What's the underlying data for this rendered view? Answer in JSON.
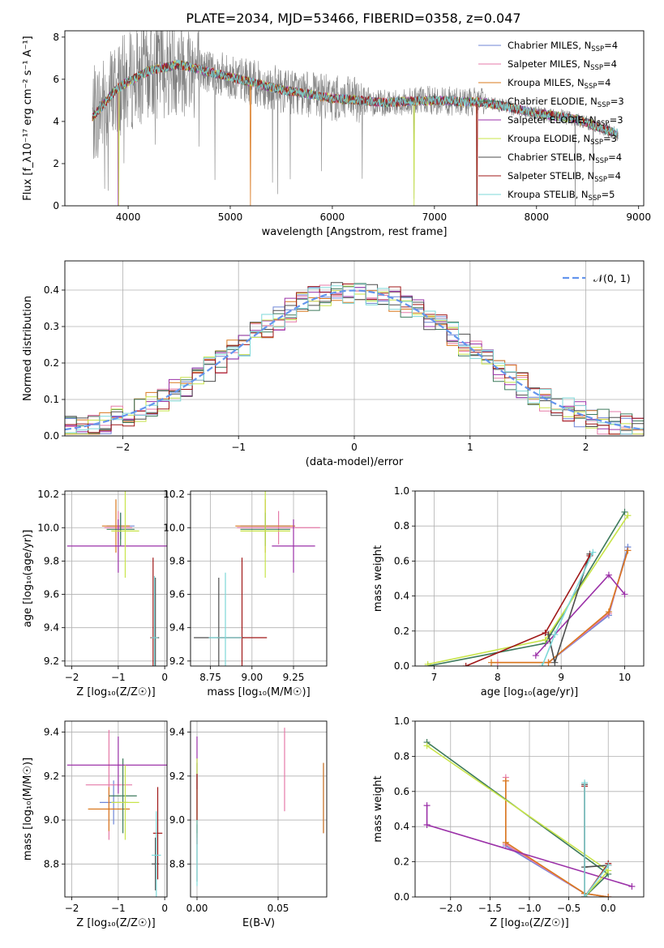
{
  "title": "PLATE=2034, MJD=53466, FIBERID=0358, z=0.047",
  "colors": {
    "chabrier_miles": "#6f86d6",
    "salpeter_miles": "#e57aa8",
    "kroupa_miles": "#d9781e",
    "chabrier_elodie": "#3d7a5c",
    "salpeter_elodie": "#9b31a8",
    "kroupa_elodie": "#c8e44a",
    "chabrier_stelib": "#4d4d4d",
    "salpeter_stelib": "#a01818",
    "kroupa_stelib": "#7dd8d8",
    "data": "#808080",
    "gauss": "#6495ed",
    "grid": "#b0b0b0"
  },
  "chart_data": [
    {
      "id": "spectrum",
      "type": "line",
      "title": "PLATE=2034, MJD=53466, FIBERID=0358, z=0.047",
      "xlabel": "wavelength [Angstrom, rest frame]",
      "ylabel": "Flux [f_λ10⁻¹⁷ erg cm⁻² s⁻¹ A⁻¹]",
      "xlim": [
        3380,
        9050
      ],
      "ylim": [
        0,
        8.3
      ],
      "xticks": [
        4000,
        5000,
        6000,
        7000,
        8000,
        9000
      ],
      "yticks": [
        0,
        2,
        4,
        6,
        8
      ],
      "grid": false,
      "legend": "top-right",
      "continuum": {
        "x": [
          3650,
          3900,
          4200,
          4500,
          5000,
          5500,
          6000,
          6500,
          7000,
          7500,
          8000,
          8400,
          8800
        ],
        "y": [
          4.2,
          5.6,
          6.4,
          6.7,
          6.1,
          5.5,
          5.1,
          4.9,
          5.0,
          4.9,
          4.4,
          4.1,
          3.4
        ]
      },
      "series": [
        {
          "name": "Chabrier MILES, N_SSP=4",
          "label_main": "Chabrier MILES, N",
          "label_sub": "SSP",
          "label_tail": "=4",
          "color_key": "chabrier_miles"
        },
        {
          "name": "Salpeter MILES, N_SSP=4",
          "label_main": "Salpeter MILES, N",
          "label_sub": "SSP",
          "label_tail": "=4",
          "color_key": "salpeter_miles"
        },
        {
          "name": "Kroupa MILES, N_SSP=4",
          "label_main": "Kroupa MILES, N",
          "label_sub": "SSP",
          "label_tail": "=4",
          "color_key": "kroupa_miles"
        },
        {
          "name": "Chabrier ELODIE, N_SSP=3",
          "label_main": "Chabrier ELODIE, N",
          "label_sub": "SSP",
          "label_tail": "=3",
          "color_key": "chabrier_elodie"
        },
        {
          "name": "Salpeter ELODIE, N_SSP=3",
          "label_main": "Salpeter ELODIE, N",
          "label_sub": "SSP",
          "label_tail": "=3",
          "color_key": "salpeter_elodie"
        },
        {
          "name": "Kroupa ELODIE, N_SSP=3",
          "label_main": "Kroupa ELODIE, N",
          "label_sub": "SSP",
          "label_tail": "=3",
          "color_key": "kroupa_elodie"
        },
        {
          "name": "Chabrier STELIB, N_SSP=4",
          "label_main": "Chabrier STELIB, N",
          "label_sub": "SSP",
          "label_tail": "=4",
          "color_key": "chabrier_stelib"
        },
        {
          "name": "Salpeter STELIB, N_SSP=4",
          "label_main": "Salpeter STELIB, N",
          "label_sub": "SSP",
          "label_tail": "=4",
          "color_key": "salpeter_stelib"
        },
        {
          "name": "Kroupa STELIB, N_SSP=5",
          "label_main": "Kroupa STELIB, N",
          "label_sub": "SSP",
          "label_tail": "=5",
          "color_key": "kroupa_stelib"
        }
      ]
    },
    {
      "id": "residuals",
      "type": "line",
      "xlabel": "(data-model)/error",
      "ylabel": "Normed distribution",
      "xlim": [
        -2.5,
        2.5
      ],
      "ylim": [
        0,
        0.48
      ],
      "xticks": [
        -2,
        -1,
        0,
        1,
        2
      ],
      "yticks": [
        0.0,
        0.1,
        0.2,
        0.3,
        0.4
      ],
      "grid": true,
      "legend": "top-right",
      "legend_label": "𝒩(0, 1)",
      "bins": {
        "start": -2.5,
        "width": 0.1,
        "count": 50
      }
    },
    {
      "id": "age_vs_Z",
      "type": "scatter",
      "xlabel": "Z [log₁₀(Z/Z☉)]",
      "ylabel": "age  [log₁₀(age/yr)]",
      "xlim": [
        -2.15,
        0.05
      ],
      "ylim": [
        9.17,
        10.22
      ],
      "xticks": [
        -2,
        -1,
        0
      ],
      "yticks": [
        9.2,
        9.4,
        9.6,
        9.8,
        10.0,
        10.2
      ],
      "grid": true,
      "points": [
        {
          "x": -0.95,
          "y": 10.01,
          "xerr": 0.3,
          "yerr": 0.08,
          "color_key": "chabrier_miles"
        },
        {
          "x": -1.0,
          "y": 10.0,
          "xerr": 0.3,
          "yerr": 0.1,
          "color_key": "salpeter_miles"
        },
        {
          "x": -1.05,
          "y": 10.01,
          "xerr": 0.3,
          "yerr": 0.16,
          "color_key": "kroupa_miles"
        },
        {
          "x": -0.95,
          "y": 9.99,
          "xerr": 0.3,
          "yerr": 0.1,
          "color_key": "chabrier_elodie"
        },
        {
          "x": -1.0,
          "y": 9.89,
          "xerr": 1.1,
          "yerr": 0.16,
          "color_key": "salpeter_elodie"
        },
        {
          "x": -0.85,
          "y": 9.98,
          "xerr": 0.3,
          "yerr": 0.28,
          "color_key": "kroupa_elodie"
        },
        {
          "x": -0.2,
          "y": 9.34,
          "xerr": 0.08,
          "yerr": 0.36,
          "color_key": "chabrier_stelib"
        },
        {
          "x": -0.25,
          "y": 9.34,
          "xerr": 0.06,
          "yerr": 0.48,
          "color_key": "salpeter_stelib"
        },
        {
          "x": -0.22,
          "y": 9.34,
          "xerr": 0.07,
          "yerr": 0.37,
          "color_key": "kroupa_stelib"
        }
      ]
    },
    {
      "id": "age_vs_mass",
      "type": "scatter",
      "xlabel": "mass [log₁₀(M/M☉)]",
      "ylabel": "",
      "xlim": [
        8.63,
        9.45
      ],
      "ylim": [
        9.17,
        10.22
      ],
      "xticks": [
        8.75,
        9.0,
        9.25
      ],
      "yticks": [
        9.2,
        9.4,
        9.6,
        9.8,
        10.0,
        10.2
      ],
      "grid": true,
      "points": [
        {
          "x": 9.08,
          "y": 10.01,
          "xerr": 0.15,
          "yerr": 0.08,
          "color_key": "chabrier_miles"
        },
        {
          "x": 9.16,
          "y": 10.0,
          "xerr": 0.25,
          "yerr": 0.1,
          "color_key": "salpeter_miles"
        },
        {
          "x": 9.08,
          "y": 10.01,
          "xerr": 0.18,
          "yerr": 0.16,
          "color_key": "kroupa_miles"
        },
        {
          "x": 9.08,
          "y": 9.99,
          "xerr": 0.15,
          "yerr": 0.1,
          "color_key": "chabrier_elodie"
        },
        {
          "x": 9.25,
          "y": 9.89,
          "xerr": 0.13,
          "yerr": 0.16,
          "color_key": "salpeter_elodie"
        },
        {
          "x": 9.08,
          "y": 9.98,
          "xerr": 0.15,
          "yerr": 0.28,
          "color_key": "kroupa_elodie"
        },
        {
          "x": 8.8,
          "y": 9.34,
          "xerr": 0.15,
          "yerr": 0.36,
          "color_key": "chabrier_stelib"
        },
        {
          "x": 8.94,
          "y": 9.34,
          "xerr": 0.15,
          "yerr": 0.48,
          "color_key": "salpeter_stelib"
        },
        {
          "x": 8.84,
          "y": 9.34,
          "xerr": 0.1,
          "yerr": 0.39,
          "color_key": "kroupa_stelib"
        }
      ]
    },
    {
      "id": "weight_vs_age",
      "type": "line",
      "xlabel": "age  [log₁₀(age/yr)]",
      "ylabel": "mass weight",
      "xlim": [
        6.7,
        10.3
      ],
      "ylim": [
        0,
        1.0
      ],
      "xticks": [
        7,
        8,
        9,
        10
      ],
      "yticks": [
        0.0,
        0.2,
        0.4,
        0.6,
        0.8,
        1.0
      ],
      "grid": true,
      "series": [
        {
          "color_key": "chabrier_miles",
          "x": [
            8.8,
            9.75,
            10.05
          ],
          "y": [
            0.02,
            0.29,
            0.68
          ]
        },
        {
          "color_key": "salpeter_miles",
          "x": [
            8.0,
            8.8,
            9.75,
            10.05
          ],
          "y": [
            0.02,
            0.02,
            0.3,
            0.66
          ]
        },
        {
          "color_key": "kroupa_miles",
          "x": [
            7.9,
            8.8,
            9.75,
            10.05
          ],
          "y": [
            0.02,
            0.02,
            0.31,
            0.66
          ]
        },
        {
          "color_key": "chabrier_elodie",
          "x": [
            6.9,
            8.75,
            10.0
          ],
          "y": [
            0.0,
            0.13,
            0.88
          ]
        },
        {
          "color_key": "salpeter_elodie",
          "x": [
            8.6,
            9.75,
            10.0
          ],
          "y": [
            0.06,
            0.52,
            0.41
          ]
        },
        {
          "color_key": "kroupa_elodie",
          "x": [
            6.9,
            8.75,
            10.05
          ],
          "y": [
            0.01,
            0.15,
            0.86
          ]
        },
        {
          "color_key": "chabrier_stelib",
          "x": [
            8.8,
            8.9,
            9.45
          ],
          "y": [
            0.18,
            0.02,
            0.64
          ]
        },
        {
          "color_key": "salpeter_stelib",
          "x": [
            7.5,
            8.75,
            9.45
          ],
          "y": [
            0.0,
            0.19,
            0.63
          ]
        },
        {
          "color_key": "kroupa_stelib",
          "x": [
            8.7,
            8.9,
            9.5
          ],
          "y": [
            0.0,
            0.18,
            0.65
          ]
        }
      ]
    },
    {
      "id": "mass_vs_Z",
      "type": "scatter",
      "xlabel": "Z [log₁₀(Z/Z☉)]",
      "ylabel": "mass [log₁₀(M/M☉)]",
      "xlim": [
        -2.15,
        0.05
      ],
      "ylim": [
        8.65,
        9.45
      ],
      "xticks": [
        -2,
        -1,
        0
      ],
      "yticks": [
        8.8,
        9.0,
        9.2,
        9.4
      ],
      "grid": true,
      "points": [
        {
          "x": -1.1,
          "y": 9.08,
          "xerr": 0.3,
          "yerr": 0.1,
          "color_key": "chabrier_miles"
        },
        {
          "x": -1.2,
          "y": 9.16,
          "xerr": 0.5,
          "yerr": 0.25,
          "color_key": "salpeter_miles"
        },
        {
          "x": -1.2,
          "y": 9.05,
          "xerr": 0.45,
          "yerr": 0.1,
          "color_key": "kroupa_miles"
        },
        {
          "x": -0.9,
          "y": 9.11,
          "xerr": 0.3,
          "yerr": 0.17,
          "color_key": "chabrier_elodie"
        },
        {
          "x": -1.0,
          "y": 9.25,
          "xerr": 1.1,
          "yerr": 0.13,
          "color_key": "salpeter_elodie"
        },
        {
          "x": -0.85,
          "y": 9.08,
          "xerr": 0.3,
          "yerr": 0.17,
          "color_key": "kroupa_elodie"
        },
        {
          "x": -0.2,
          "y": 8.8,
          "xerr": 0.08,
          "yerr": 0.12,
          "color_key": "chabrier_stelib"
        },
        {
          "x": -0.15,
          "y": 8.94,
          "xerr": 0.1,
          "yerr": 0.21,
          "color_key": "salpeter_stelib"
        },
        {
          "x": -0.18,
          "y": 8.84,
          "xerr": 0.1,
          "yerr": 0.2,
          "color_key": "kroupa_stelib"
        }
      ]
    },
    {
      "id": "mass_vs_EBV",
      "type": "scatter",
      "xlabel": "E(B-V)",
      "ylabel": "",
      "xlim": [
        -0.004,
        0.08
      ],
      "ylim": [
        8.65,
        9.45
      ],
      "xticks": [
        0.0,
        0.05
      ],
      "yticks": [
        8.8,
        9.0,
        9.2,
        9.4
      ],
      "grid": true,
      "points": [
        {
          "x": 0.078,
          "y": 9.1,
          "xerr": 0,
          "yerr": 0.16,
          "color_key": "chabrier_miles"
        },
        {
          "x": 0.054,
          "y": 9.23,
          "xerr": 0,
          "yerr": 0.19,
          "color_key": "salpeter_miles"
        },
        {
          "x": 0.078,
          "y": 9.1,
          "xerr": 0,
          "yerr": 0.16,
          "color_key": "kroupa_miles"
        },
        {
          "x": 0.0,
          "y": 9.1,
          "xerr": 0,
          "yerr": 0.16,
          "color_key": "chabrier_elodie"
        },
        {
          "x": 0.0,
          "y": 9.26,
          "xerr": 0,
          "yerr": 0.12,
          "color_key": "salpeter_elodie"
        },
        {
          "x": 0.0,
          "y": 9.1,
          "xerr": 0,
          "yerr": 0.18,
          "color_key": "kroupa_elodie"
        },
        {
          "x": 0.0,
          "y": 8.85,
          "xerr": 0,
          "yerr": 0.13,
          "color_key": "chabrier_stelib"
        },
        {
          "x": 0.0,
          "y": 9.05,
          "xerr": 0,
          "yerr": 0.16,
          "color_key": "salpeter_stelib"
        },
        {
          "x": 0.0,
          "y": 8.85,
          "xerr": 0,
          "yerr": 0.15,
          "color_key": "kroupa_stelib"
        }
      ]
    },
    {
      "id": "weight_vs_Z",
      "type": "line",
      "xlabel": "Z [log₁₀(Z/Z☉)]",
      "ylabel": "mass weight",
      "xlim": [
        -2.45,
        0.45
      ],
      "ylim": [
        0,
        1.0
      ],
      "xticks": [
        -2.0,
        -1.5,
        -1.0,
        -0.5,
        0.0
      ],
      "yticks": [
        0.0,
        0.2,
        0.4,
        0.6,
        0.8,
        1.0
      ],
      "grid": true,
      "series": [
        {
          "color_key": "chabrier_miles",
          "x": [
            -1.3,
            -0.3,
            0.0
          ],
          "y": [
            0.29,
            0.02,
            0.0
          ]
        },
        {
          "color_key": "salpeter_miles",
          "x": [
            -1.3,
            -1.3,
            -0.3,
            0.0
          ],
          "y": [
            0.68,
            0.3,
            0.02,
            0.0
          ]
        },
        {
          "color_key": "kroupa_miles",
          "x": [
            -1.3,
            -1.3,
            -0.3,
            0.0
          ],
          "y": [
            0.66,
            0.31,
            0.02,
            0.0
          ]
        },
        {
          "color_key": "chabrier_elodie",
          "x": [
            -2.3,
            0.0,
            -0.3
          ],
          "y": [
            0.88,
            0.13,
            0.0
          ]
        },
        {
          "color_key": "salpeter_elodie",
          "x": [
            -2.3,
            -2.3,
            0.3
          ],
          "y": [
            0.52,
            0.41,
            0.06
          ]
        },
        {
          "color_key": "kroupa_elodie",
          "x": [
            -2.3,
            0.0,
            -0.3
          ],
          "y": [
            0.86,
            0.15,
            0.0
          ]
        },
        {
          "color_key": "chabrier_stelib",
          "x": [
            -0.3,
            -0.3,
            0.0
          ],
          "y": [
            0.64,
            0.17,
            0.18
          ]
        },
        {
          "color_key": "salpeter_stelib",
          "x": [
            -0.3,
            -0.3,
            0.0,
            0.0
          ],
          "y": [
            0.63,
            0.0,
            0.19,
            0.18
          ]
        },
        {
          "color_key": "kroupa_stelib",
          "x": [
            -0.3,
            -0.3,
            0.0
          ],
          "y": [
            0.65,
            0.0,
            0.18
          ]
        }
      ]
    }
  ]
}
